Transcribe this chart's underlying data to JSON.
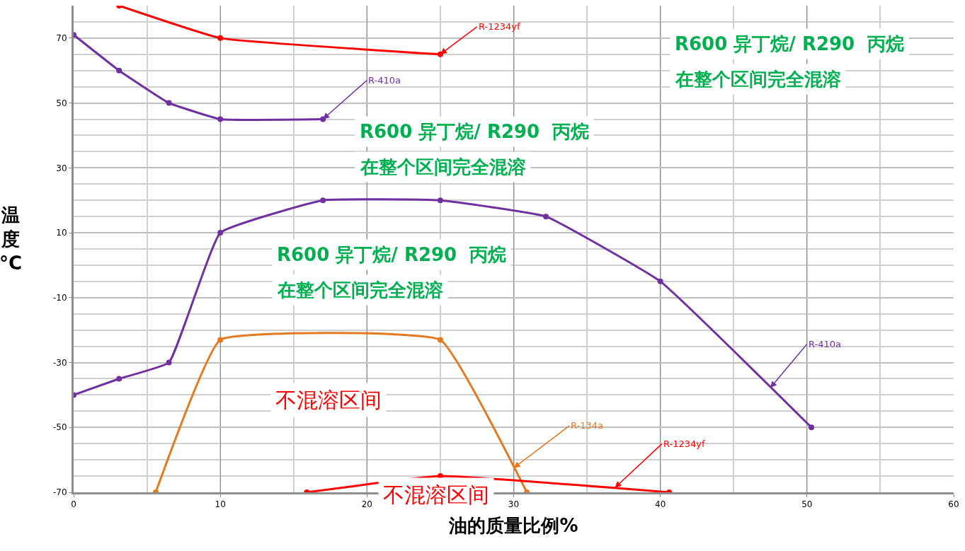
{
  "chart_data": {
    "type": "line",
    "xlabel": "油的质量比例%",
    "ylabel": "温度°C",
    "xlim": [
      0,
      60
    ],
    "xticks": [
      0,
      10,
      20,
      30,
      40,
      50,
      60
    ],
    "ylim": [
      -70,
      80
    ],
    "yticks": [
      -70,
      -50,
      -30,
      -10,
      10,
      30,
      50,
      70
    ],
    "grid": true,
    "marker": "circle",
    "line_style": "solid",
    "series": [
      {
        "color": "#ff0000",
        "x": [
          3.1,
          10,
          25
        ],
        "values": [
          80,
          70,
          65
        ]
      },
      {
        "color": "#7030a0",
        "x": [
          0,
          3.1,
          6.5,
          10,
          17
        ],
        "values": [
          71,
          60,
          50,
          45,
          45
        ]
      },
      {
        "color": "#7030a0",
        "x": [
          0,
          3.1,
          6.5,
          10,
          17,
          25,
          32.2,
          40,
          50.3
        ],
        "values": [
          -40,
          -35,
          -30,
          10,
          20,
          20,
          15,
          -5,
          -50
        ]
      },
      {
        "color": "#e4791f",
        "x": [
          5.6,
          10,
          25,
          30.9
        ],
        "values": [
          -70,
          -23,
          -23,
          -70
        ]
      },
      {
        "color": "#ff0000",
        "x": [
          15.9,
          25,
          40.6
        ],
        "values": [
          -70,
          -65,
          -70
        ]
      }
    ],
    "annotations": [
      {
        "text": "R-1234yf",
        "x": 25,
        "y": 65
      },
      {
        "text": "R-410a",
        "x": 17,
        "y": 45
      },
      {
        "text": "R-410a",
        "x": 47.5,
        "y": -37.8
      },
      {
        "text": "R-134a",
        "x": 30.0,
        "y": -62.5
      },
      {
        "text": "R-1234yf",
        "x": 36.9,
        "y": -68.6
      },
      "R600 异丁烷/ R290  丙烷",
      "在整个区间完全混溶",
      "R600 异丁烷/ R290  丙烷",
      "在整个区间完全混溶",
      "R600 异丁烷/ R290  丙烷",
      "在整个区间完全混溶",
      "不混溶区间",
      "不混溶区间"
    ]
  }
}
